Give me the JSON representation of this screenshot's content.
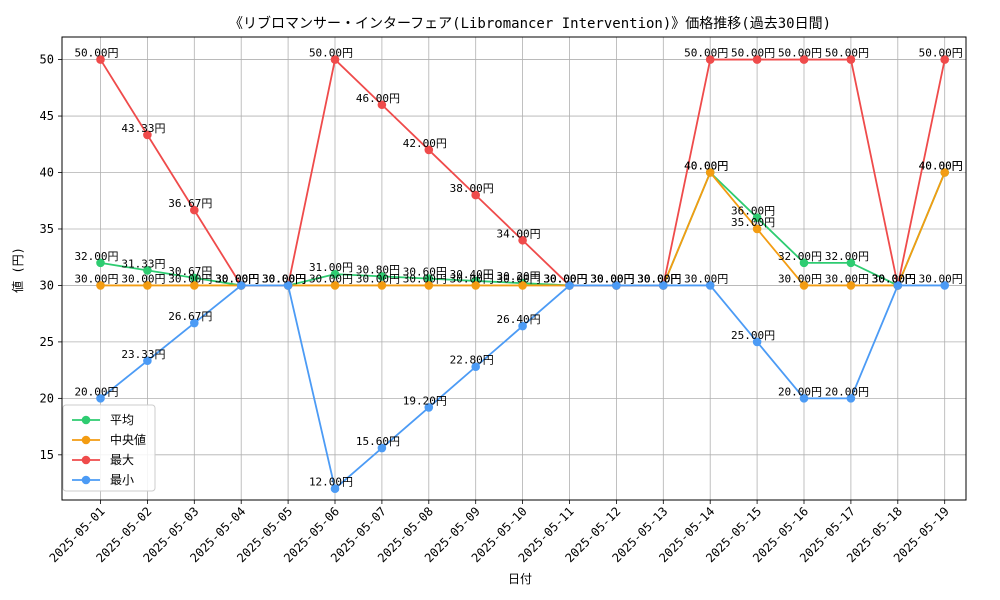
{
  "chart_data": {
    "type": "line",
    "title": "《リブロマンサー・インターフェア(Libromancer Intervention)》価格推移(過去30日間)",
    "xlabel": "日付",
    "ylabel": "値 (円)",
    "ylim": [
      11,
      52
    ],
    "y_ticks": [
      15,
      20,
      25,
      30,
      35,
      40,
      45,
      50
    ],
    "grid": true,
    "legend_position": "lower-left",
    "value_suffix": "円",
    "categories": [
      "2025-05-01",
      "2025-05-02",
      "2025-05-03",
      "2025-05-04",
      "2025-05-05",
      "2025-05-06",
      "2025-05-07",
      "2025-05-08",
      "2025-05-09",
      "2025-05-10",
      "2025-05-11",
      "2025-05-12",
      "2025-05-13",
      "2025-05-14",
      "2025-05-15",
      "2025-05-16",
      "2025-05-17",
      "2025-05-18",
      "2025-05-19"
    ],
    "series": [
      {
        "name": "平均",
        "color": "#2ecc71",
        "values": [
          32.0,
          31.33,
          30.67,
          30.0,
          30.0,
          31.0,
          30.8,
          30.6,
          30.4,
          30.2,
          30.0,
          30.0,
          30.0,
          40.0,
          36.0,
          32.0,
          32.0,
          30.0,
          40.0
        ]
      },
      {
        "name": "中央値",
        "color": "#f39c12",
        "values": [
          30.0,
          30.0,
          30.0,
          30.0,
          30.0,
          30.0,
          30.0,
          30.0,
          30.0,
          30.0,
          30.0,
          30.0,
          30.0,
          40.0,
          35.0,
          30.0,
          30.0,
          30.0,
          40.0
        ]
      },
      {
        "name": "最大",
        "color": "#ef4b4b",
        "values": [
          50.0,
          43.33,
          36.67,
          30.0,
          30.0,
          50.0,
          46.0,
          42.0,
          38.0,
          34.0,
          30.0,
          30.0,
          30.0,
          50.0,
          50.0,
          50.0,
          50.0,
          30.0,
          50.0
        ]
      },
      {
        "name": "最小",
        "color": "#4c9bf5",
        "values": [
          20.0,
          23.33,
          26.67,
          30.0,
          30.0,
          12.0,
          15.6,
          19.2,
          22.8,
          26.4,
          30.0,
          30.0,
          30.0,
          30.0,
          25.0,
          20.0,
          20.0,
          30.0,
          30.0
        ]
      }
    ]
  }
}
